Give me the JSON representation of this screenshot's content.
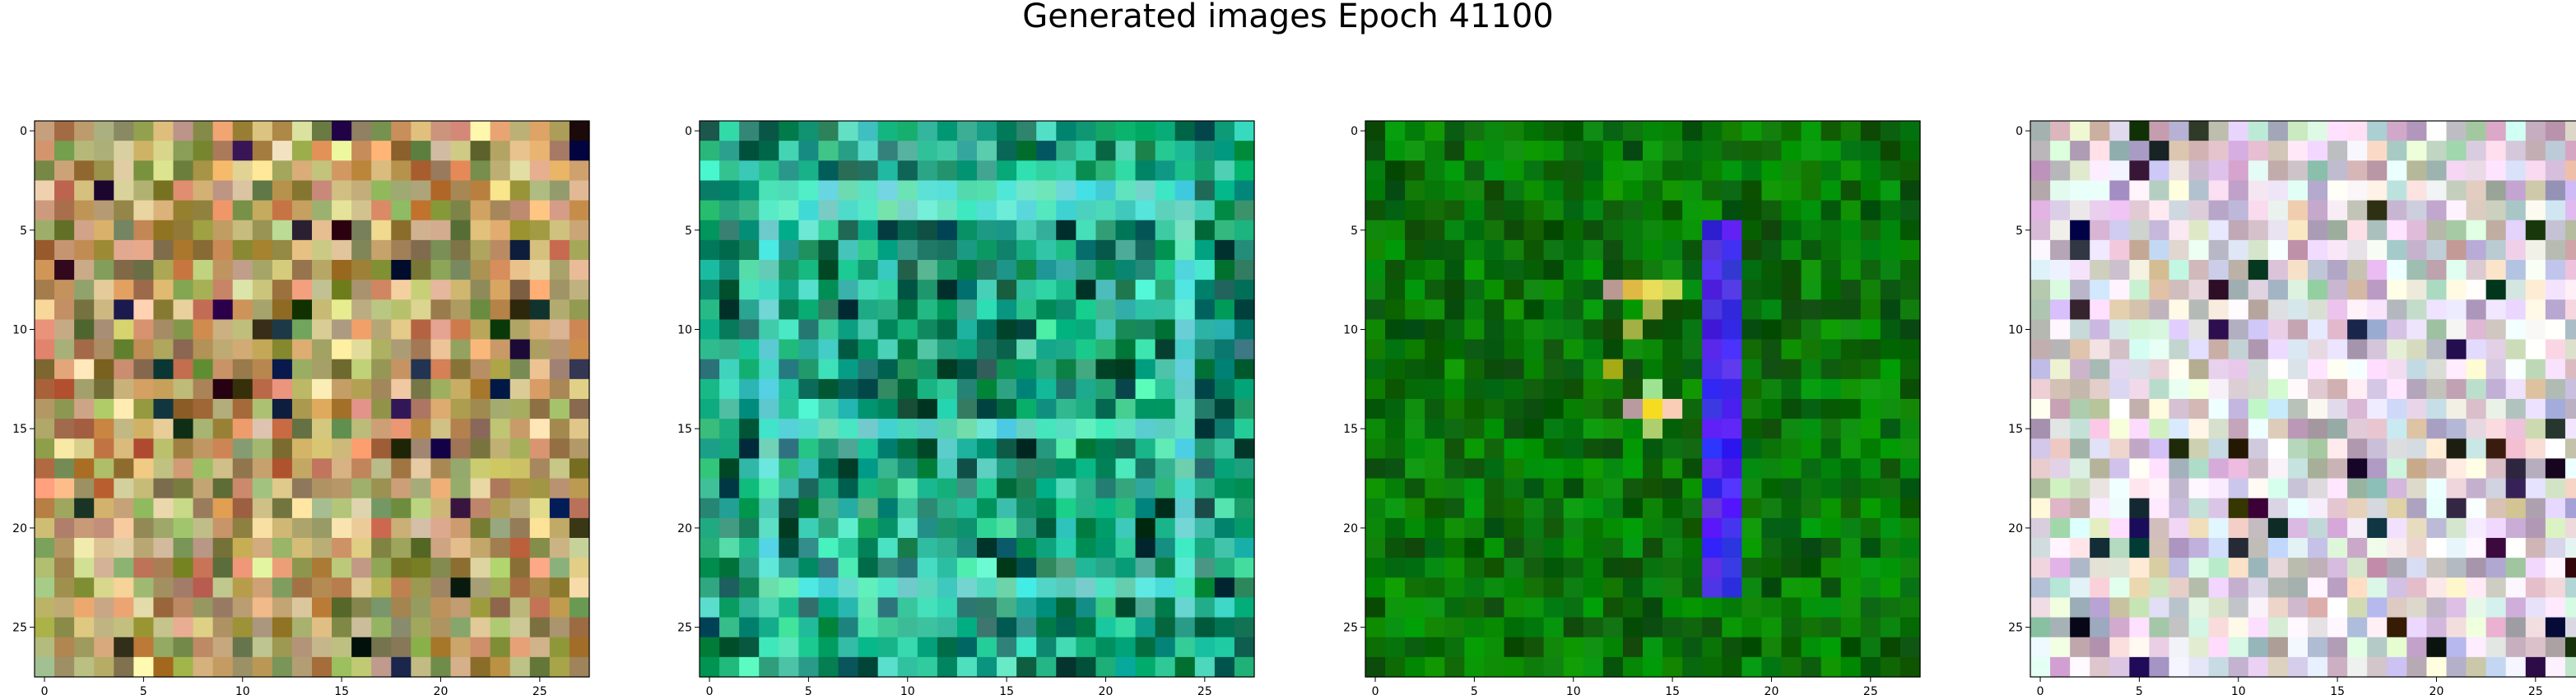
{
  "title": "Generated images Epoch 41100",
  "chart_data": [
    {
      "type": "heatmap",
      "rows": 28,
      "cols": 28,
      "xticks": [
        0,
        5,
        10,
        15,
        20,
        25
      ],
      "yticks": [
        0,
        5,
        10,
        15,
        20,
        25
      ],
      "xlim": [
        -0.5,
        27.5
      ],
      "ylim": [
        27.5,
        -0.5
      ],
      "palette": "muted-warm",
      "pattern": "frame-noise",
      "colors": [
        "#b89a6a",
        "#c98a5a",
        "#a8a05a",
        "#d6c08a",
        "#8a9a5a"
      ]
    },
    {
      "type": "heatmap",
      "rows": 28,
      "cols": 28,
      "xticks": [
        0,
        5,
        10,
        15,
        20,
        25
      ],
      "yticks": [
        0,
        5,
        10,
        15,
        20,
        25
      ],
      "xlim": [
        -0.5,
        27.5
      ],
      "ylim": [
        27.5,
        -0.5
      ],
      "palette": "teal-green",
      "pattern": "square-frame",
      "colors": [
        "#009a6a",
        "#1a8a6a",
        "#33c4a0",
        "#0a5a4a",
        "#20b090"
      ]
    },
    {
      "type": "heatmap",
      "rows": 28,
      "cols": 28,
      "xticks": [
        0,
        5,
        10,
        15,
        20,
        25
      ],
      "yticks": [
        0,
        5,
        10,
        15,
        20,
        25
      ],
      "xlim": [
        -0.5,
        27.5
      ],
      "ylim": [
        27.5,
        -0.5
      ],
      "palette": "dark-green",
      "pattern": "vertical-blue-stroke",
      "colors": [
        "#0a6a0a",
        "#0a5a0a",
        "#168a16",
        "#2a2aee",
        "#0a4a0a"
      ]
    },
    {
      "type": "heatmap",
      "rows": 28,
      "cols": 28,
      "xticks": [
        0,
        5,
        10,
        15,
        20,
        25
      ],
      "yticks": [
        0,
        5,
        10,
        15,
        20,
        25
      ],
      "xlim": [
        -0.5,
        27.5
      ],
      "ylim": [
        27.5,
        -0.5
      ],
      "palette": "pastel",
      "pattern": "frame-noise",
      "colors": [
        "#d8c8e0",
        "#e8d8c8",
        "#c8e0d0",
        "#e0c8d8",
        "#d0d0e8"
      ]
    }
  ]
}
